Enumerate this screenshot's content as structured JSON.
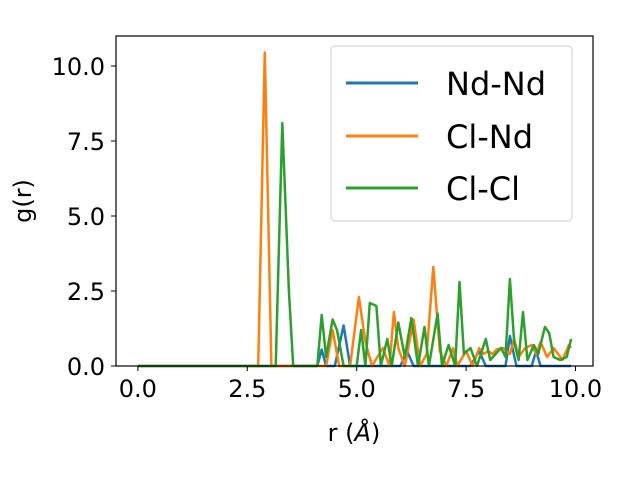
{
  "chart_data": {
    "type": "line",
    "xlabel": "r (Å)",
    "xlabel_main": "r (",
    "xlabel_unit": "Å",
    "xlabel_close": ")",
    "ylabel": "g(r)",
    "xlim": [
      -0.5,
      10.4
    ],
    "ylim": [
      0,
      11.0
    ],
    "x_ticks": [
      0.0,
      2.5,
      5.0,
      7.5,
      10.0
    ],
    "x_tick_labels": [
      "0.0",
      "2.5",
      "5.0",
      "7.5",
      "10.0"
    ],
    "y_ticks": [
      0.0,
      2.5,
      5.0,
      7.5,
      10.0
    ],
    "y_tick_labels": [
      "0.0",
      "2.5",
      "5.0",
      "7.5",
      "10.0"
    ],
    "grid": false,
    "legend_position": "top-right",
    "series": [
      {
        "name": "Nd-Nd",
        "color": "#1f77b4",
        "points": [
          [
            0.0,
            0
          ],
          [
            4.1,
            0
          ],
          [
            4.2,
            0.55
          ],
          [
            4.3,
            0
          ],
          [
            4.5,
            0
          ],
          [
            4.7,
            1.35
          ],
          [
            4.85,
            0
          ],
          [
            6.0,
            0
          ],
          [
            6.15,
            0.5
          ],
          [
            6.3,
            0
          ],
          [
            7.6,
            0
          ],
          [
            7.8,
            0.5
          ],
          [
            7.95,
            0
          ],
          [
            8.4,
            0
          ],
          [
            8.5,
            1.0
          ],
          [
            8.65,
            0
          ],
          [
            9.0,
            0
          ],
          [
            9.1,
            0.5
          ],
          [
            9.2,
            0
          ],
          [
            9.9,
            0
          ]
        ]
      },
      {
        "name": "Cl-Nd",
        "color": "#ff7f0e",
        "points": [
          [
            0.0,
            0
          ],
          [
            2.75,
            0
          ],
          [
            2.9,
            10.45
          ],
          [
            3.05,
            0
          ],
          [
            4.3,
            0
          ],
          [
            4.45,
            1.2
          ],
          [
            4.6,
            0
          ],
          [
            4.85,
            0
          ],
          [
            5.05,
            2.3
          ],
          [
            5.2,
            0.8
          ],
          [
            5.35,
            0
          ],
          [
            5.6,
            0.6
          ],
          [
            5.75,
            0
          ],
          [
            5.85,
            1.8
          ],
          [
            5.95,
            0.6
          ],
          [
            6.1,
            0
          ],
          [
            6.3,
            1.55
          ],
          [
            6.45,
            0
          ],
          [
            6.6,
            0.4
          ],
          [
            6.75,
            3.3
          ],
          [
            6.9,
            0.5
          ],
          [
            7.05,
            0
          ],
          [
            7.2,
            0.6
          ],
          [
            7.3,
            0
          ],
          [
            7.5,
            0.5
          ],
          [
            7.65,
            0
          ],
          [
            7.8,
            0.6
          ],
          [
            7.9,
            0.4
          ],
          [
            8.0,
            0.5
          ],
          [
            8.1,
            0.4
          ],
          [
            8.2,
            0.55
          ],
          [
            8.35,
            0.6
          ],
          [
            8.5,
            0.4
          ],
          [
            8.6,
            0.9
          ],
          [
            8.7,
            0.3
          ],
          [
            8.85,
            0.6
          ],
          [
            9.0,
            0.7
          ],
          [
            9.1,
            0.4
          ],
          [
            9.2,
            0.8
          ],
          [
            9.35,
            0.3
          ],
          [
            9.5,
            0.6
          ],
          [
            9.6,
            0.4
          ],
          [
            9.7,
            0.2
          ],
          [
            9.85,
            0.7
          ],
          [
            9.9,
            0.6
          ]
        ]
      },
      {
        "name": "Cl-Cl",
        "color": "#2ca02c",
        "points": [
          [
            0.0,
            0
          ],
          [
            3.15,
            0
          ],
          [
            3.3,
            8.1
          ],
          [
            3.45,
            2.5
          ],
          [
            3.55,
            0
          ],
          [
            4.1,
            0
          ],
          [
            4.2,
            1.7
          ],
          [
            4.3,
            0.3
          ],
          [
            4.45,
            1.55
          ],
          [
            4.55,
            1.2
          ],
          [
            4.7,
            0
          ],
          [
            5.0,
            0
          ],
          [
            5.1,
            1.2
          ],
          [
            5.2,
            0
          ],
          [
            5.3,
            2.1
          ],
          [
            5.45,
            2.0
          ],
          [
            5.55,
            0
          ],
          [
            5.7,
            0.9
          ],
          [
            5.8,
            0
          ],
          [
            5.95,
            1.45
          ],
          [
            6.1,
            0.3
          ],
          [
            6.25,
            1.6
          ],
          [
            6.4,
            0
          ],
          [
            6.55,
            1.3
          ],
          [
            6.65,
            0
          ],
          [
            6.85,
            1.75
          ],
          [
            6.95,
            0
          ],
          [
            7.1,
            0.7
          ],
          [
            7.25,
            0
          ],
          [
            7.35,
            2.8
          ],
          [
            7.45,
            0.4
          ],
          [
            7.6,
            0.6
          ],
          [
            7.75,
            0
          ],
          [
            7.95,
            0.9
          ],
          [
            8.05,
            0.2
          ],
          [
            8.3,
            0.6
          ],
          [
            8.4,
            0.3
          ],
          [
            8.5,
            2.9
          ],
          [
            8.6,
            0.8
          ],
          [
            8.7,
            0.2
          ],
          [
            8.8,
            1.8
          ],
          [
            8.9,
            0.2
          ],
          [
            9.05,
            0.7
          ],
          [
            9.15,
            0.4
          ],
          [
            9.3,
            1.3
          ],
          [
            9.4,
            1.1
          ],
          [
            9.5,
            0.3
          ],
          [
            9.65,
            0.2
          ],
          [
            9.8,
            0.3
          ],
          [
            9.9,
            0.9
          ]
        ]
      }
    ]
  }
}
